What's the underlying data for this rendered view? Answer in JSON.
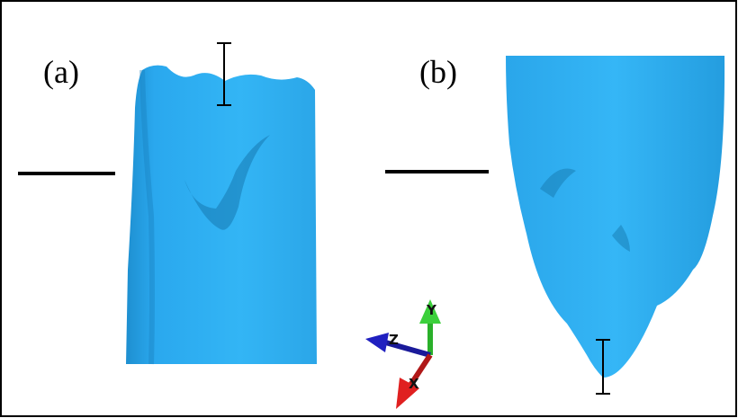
{
  "panels": [
    {
      "label": "(a)"
    },
    {
      "label": "(b)"
    }
  ],
  "axes": {
    "y": "Y",
    "z": "Z",
    "x": "X"
  }
}
